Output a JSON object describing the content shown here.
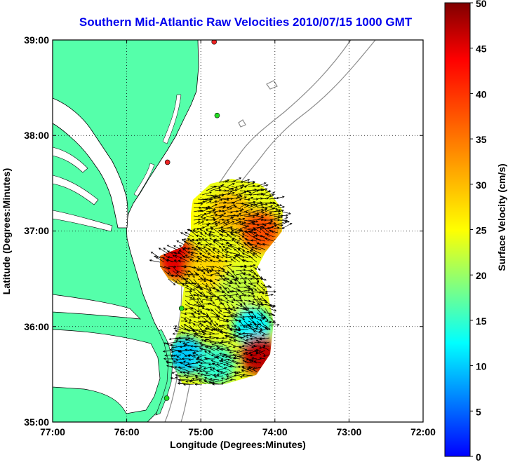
{
  "title": "Southern Mid-Atlantic Raw Velocities 2010/07/15 1000 GMT",
  "x_axis": {
    "label": "Longitude (Degrees:Minutes)",
    "ticks": [
      "77:00",
      "76:00",
      "75:00",
      "74:00",
      "73:00",
      "72:00"
    ]
  },
  "y_axis": {
    "label": "Latitude (Degrees:Minutes)",
    "ticks": [
      "39:00",
      "38:00",
      "37:00",
      "36:00",
      "35:00"
    ]
  },
  "colorbar": {
    "label": "Surface Velocity (cm/s)",
    "ticks": [
      "50",
      "45",
      "40",
      "35",
      "30",
      "25",
      "20",
      "15",
      "10",
      "5",
      "0"
    ],
    "min": 0,
    "max": 50
  },
  "chart_data": {
    "type": "heatmap",
    "lon_range": [
      -77,
      -72
    ],
    "lat_range": [
      35,
      39
    ],
    "grid": true,
    "colormap": "jet",
    "velocity_regions": [
      {
        "lon": -75.1,
        "lat": 37.2,
        "speed": 25
      },
      {
        "lon": -74.6,
        "lat": 37.2,
        "speed": 30
      },
      {
        "lon": -74.2,
        "lat": 37.0,
        "speed": 38
      },
      {
        "lon": -75.3,
        "lat": 36.7,
        "speed": 45
      },
      {
        "lon": -74.9,
        "lat": 36.6,
        "speed": 28
      },
      {
        "lon": -74.5,
        "lat": 36.4,
        "speed": 22
      },
      {
        "lon": -74.3,
        "lat": 36.0,
        "speed": 12
      },
      {
        "lon": -74.2,
        "lat": 35.7,
        "speed": 47
      },
      {
        "lon": -75.2,
        "lat": 35.7,
        "speed": 10
      },
      {
        "lon": -74.8,
        "lat": 35.6,
        "speed": 15
      }
    ],
    "stations_green": [
      {
        "lon": -74.78,
        "lat": 38.21
      },
      {
        "lon": -75.26,
        "lat": 36.19
      },
      {
        "lon": -75.46,
        "lat": 35.25
      }
    ],
    "stations_red": [
      {
        "lon": -74.82,
        "lat": 38.98
      },
      {
        "lon": -75.45,
        "lat": 37.72
      }
    ]
  }
}
